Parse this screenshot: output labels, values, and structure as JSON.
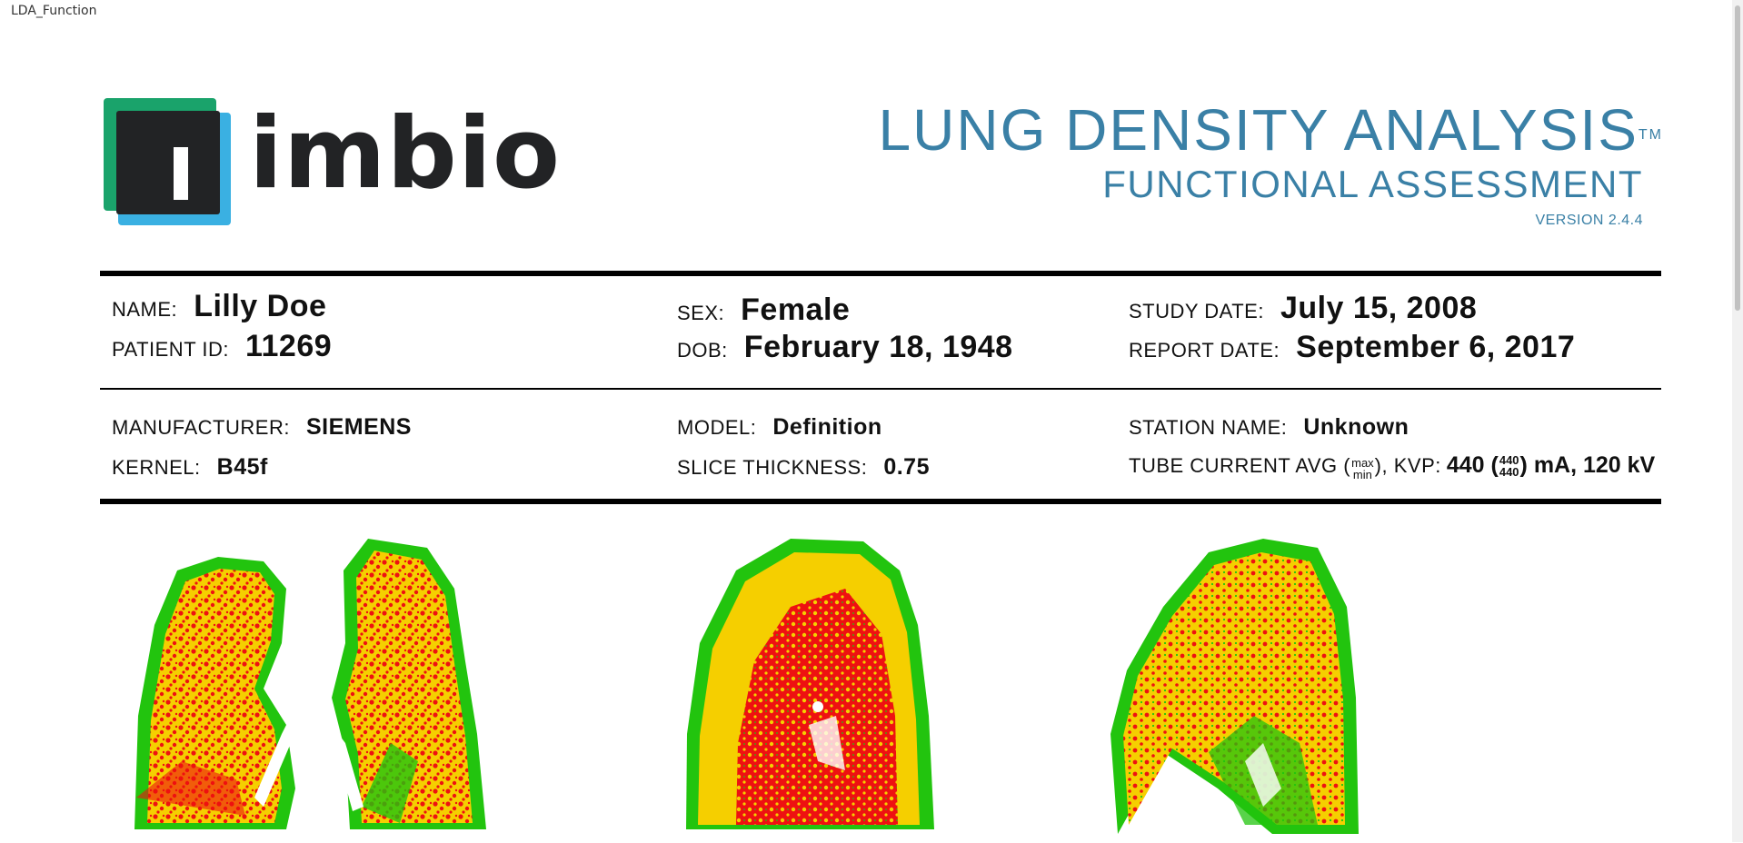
{
  "window": {
    "title": "LDA_Function"
  },
  "brand": {
    "logo_text": "imbio"
  },
  "report": {
    "title": "LUNG DENSITY ANALYSIS",
    "trademark": "TM",
    "subtitle": "FUNCTIONAL ASSESSMENT",
    "version": "VERSION 2.4.4"
  },
  "patient": {
    "name_label": "NAME:",
    "name": "Lilly Doe",
    "id_label": "PATIENT ID:",
    "id": "11269",
    "sex_label": "SEX:",
    "sex": "Female",
    "dob_label": "DOB:",
    "dob": "February 18, 1948",
    "study_date_label": "STUDY DATE:",
    "study_date": "July 15, 2008",
    "report_date_label": "REPORT DATE:",
    "report_date": "September 6, 2017"
  },
  "scan": {
    "manufacturer_label": "MANUFACTURER:",
    "manufacturer": "SIEMENS",
    "kernel_label": "KERNEL:",
    "kernel": "B45f",
    "model_label": "MODEL:",
    "model": "Definition",
    "slice_label": "SLICE THICKNESS:",
    "slice": "0.75",
    "station_label": "STATION NAME:",
    "station": "Unknown",
    "tube_label_pre": "TUBE CURRENT AVG (",
    "tube_label_frac_top": "max",
    "tube_label_frac_bottom": "min",
    "tube_label_post": "), KVP:",
    "tube_value_pre": "440 (",
    "tube_value_frac_top": "440",
    "tube_value_frac_bottom": "440",
    "tube_value_post": ") mA, 120 kV"
  },
  "colors": {
    "accent": "#3a80a6",
    "logo_green": "#1aa36b",
    "logo_blue": "#3ab0e2",
    "logo_dark": "#222325",
    "lung_green": "#22c40e",
    "lung_yellow": "#f5cf00",
    "lung_red": "#ee1111"
  },
  "images": [
    {
      "name": "coronal-lung-map"
    },
    {
      "name": "sagittal-right-lung-map"
    },
    {
      "name": "sagittal-left-lung-map"
    }
  ]
}
